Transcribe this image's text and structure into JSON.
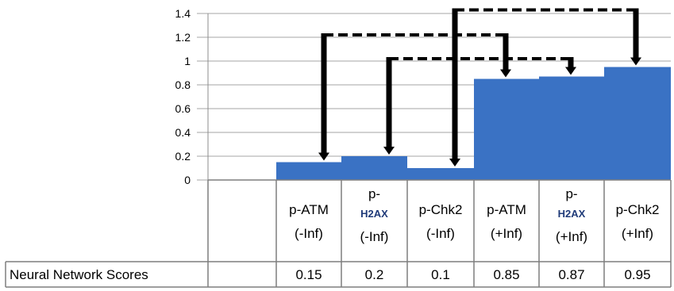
{
  "chart_data": {
    "type": "bar",
    "categories": [
      {
        "line1": "p-ATM",
        "line1_sub": "",
        "line2": "(-Inf)"
      },
      {
        "line1": "p-",
        "line1_sub": "H2AX",
        "line2": "(-Inf)"
      },
      {
        "line1": "p-Chk2",
        "line1_sub": "",
        "line2": "(-Inf)"
      },
      {
        "line1": "p-ATM",
        "line1_sub": "",
        "line2": "(+Inf)"
      },
      {
        "line1": "p-",
        "line1_sub": "H2AX",
        "line2": "(+Inf)"
      },
      {
        "line1": "p-Chk2",
        "line1_sub": "",
        "line2": "(+Inf)"
      }
    ],
    "series": [
      {
        "name": "Neural Network Scores",
        "values": [
          0.15,
          0.2,
          0.1,
          0.85,
          0.87,
          0.95
        ],
        "display": [
          "0.15",
          "0.2",
          "0.1",
          "0.85",
          "0.87",
          "0.95"
        ]
      }
    ],
    "y_ticks": [
      "0",
      "0.2",
      "0.4",
      "0.6",
      "0.8",
      "1",
      "1.2",
      "1.4"
    ],
    "ylim": [
      0,
      1.4
    ],
    "grid": true,
    "bar_color": "#3a72c4",
    "brackets": [
      {
        "from": 0,
        "to": 3,
        "level": 1.22
      },
      {
        "from": 1,
        "to": 4,
        "level": 1.02
      },
      {
        "from": 2,
        "to": 5,
        "level": 1.43
      }
    ],
    "data_table": true
  }
}
